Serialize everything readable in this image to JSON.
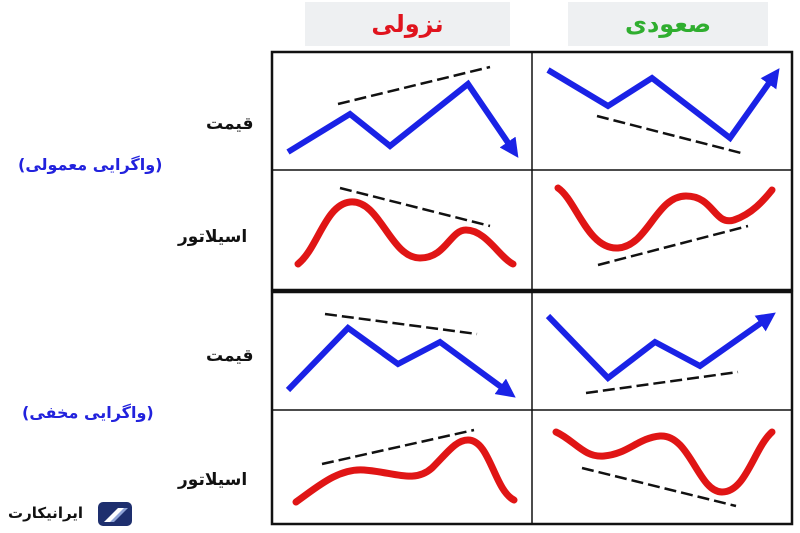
{
  "headers": {
    "bearish": "نزولی",
    "bullish": "صعودی"
  },
  "rows": {
    "price_label": "قیمت",
    "oscillator_label": "اسیلاتور",
    "regular_divergence": "(واگرایی معمولی)",
    "hidden_divergence": "(واگرایی مخفی)"
  },
  "logo": {
    "text": "ایرانیکارت"
  },
  "colors": {
    "price": "#1a22e6",
    "oscillator": "#e01515",
    "trendline": "#111111",
    "frame": "#111111"
  }
}
